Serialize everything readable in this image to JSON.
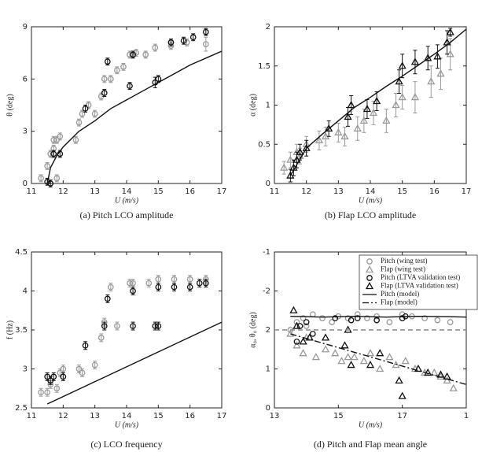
{
  "chart_data": [
    {
      "type": "scatter",
      "title": "(a) Pitch LCO amplitude",
      "xlabel": "U (m/s)",
      "ylabel": "θ (deg)",
      "xlim": [
        11,
        17
      ],
      "xticks": [
        11,
        12,
        13,
        14,
        15,
        16,
        17
      ],
      "ylim": [
        0,
        9
      ],
      "yticks": [
        0,
        3,
        6,
        9
      ],
      "series": [
        {
          "type": "scatter",
          "marker": "circle",
          "color": "#9a9a9a",
          "x": [
            11.3,
            11.5,
            11.6,
            11.7,
            11.7,
            11.8,
            11.8,
            11.9,
            12.4,
            12.5,
            12.6,
            12.8,
            13.0,
            13.2,
            13.3,
            13.5,
            13.7,
            13.9,
            14.1,
            14.3,
            14.6,
            14.9,
            15.4,
            15.9,
            16.5
          ],
          "values": [
            0.3,
            1.0,
            1.7,
            2.0,
            2.5,
            2.5,
            0.3,
            2.7,
            2.5,
            3.5,
            4.0,
            4.5,
            4.0,
            5.0,
            6.0,
            6.0,
            6.5,
            6.7,
            7.4,
            7.5,
            7.4,
            7.8,
            7.9,
            8.1,
            8.0
          ],
          "errors": [
            0.2,
            0.2,
            0.2,
            0.2,
            0.2,
            0.2,
            0.2,
            0.2,
            0.2,
            0.2,
            0.2,
            0.2,
            0.2,
            0.2,
            0.2,
            0.2,
            0.2,
            0.2,
            0.2,
            0.2,
            0.2,
            0.2,
            0.2,
            0.2,
            0.4
          ]
        },
        {
          "type": "scatter",
          "marker": "circle",
          "color": "#111111",
          "x": [
            11.5,
            11.6,
            11.7,
            11.9,
            12.7,
            13.3,
            13.4,
            14.1,
            14.2,
            14.9,
            15.0,
            15.4,
            15.8,
            16.1,
            16.5
          ],
          "values": [
            0.1,
            0.0,
            1.7,
            1.7,
            4.3,
            5.2,
            7.0,
            5.6,
            7.4,
            5.8,
            6.0,
            8.1,
            8.2,
            8.4,
            8.7
          ],
          "errors": [
            0.2,
            0.2,
            0.2,
            0.2,
            0.2,
            0.2,
            0.2,
            0.2,
            0.2,
            0.3,
            0.2,
            0.2,
            0.2,
            0.2,
            0.2
          ]
        },
        {
          "type": "line",
          "color": "#111111",
          "linestyle": "solid",
          "x": [
            11.5,
            11.6,
            11.8,
            12,
            12.5,
            13,
            13.5,
            14,
            14.5,
            15,
            15.5,
            16,
            16.5,
            17
          ],
          "values": [
            0,
            0.9,
            1.6,
            2.1,
            3.0,
            3.6,
            4.3,
            4.8,
            5.3,
            5.8,
            6.3,
            6.8,
            7.2,
            7.6
          ]
        }
      ]
    },
    {
      "type": "scatter",
      "title": "(b) Flap LCO amplitude",
      "xlabel": "U (m/s)",
      "ylabel": "α (deg)",
      "xlim": [
        11,
        17
      ],
      "xticks": [
        11,
        12,
        13,
        14,
        15,
        16,
        17
      ],
      "ylim": [
        0,
        2
      ],
      "yticks": [
        0,
        0.5,
        1,
        1.5,
        2
      ],
      "series": [
        {
          "type": "scatter",
          "marker": "triangle",
          "color": "#9a9a9a",
          "x": [
            11.3,
            11.5,
            11.7,
            11.8,
            12.0,
            12.4,
            12.6,
            13.0,
            13.2,
            13.6,
            13.8,
            14.1,
            14.5,
            14.8,
            15.0,
            15.4,
            15.9,
            16.2,
            16.5
          ],
          "values": [
            0.2,
            0.3,
            0.4,
            0.35,
            0.5,
            0.55,
            0.6,
            0.65,
            0.6,
            0.7,
            0.8,
            0.9,
            0.8,
            1.0,
            1.1,
            1.1,
            1.3,
            1.4,
            1.65
          ],
          "errors": [
            0.08,
            0.1,
            0.1,
            0.1,
            0.1,
            0.12,
            0.12,
            0.12,
            0.12,
            0.15,
            0.15,
            0.15,
            0.15,
            0.15,
            0.15,
            0.2,
            0.2,
            0.2,
            0.2
          ]
        },
        {
          "type": "scatter",
          "marker": "triangle",
          "color": "#111111",
          "x": [
            11.5,
            11.6,
            11.7,
            11.8,
            12.0,
            12.7,
            13.3,
            13.4,
            13.9,
            14.2,
            14.9,
            15.0,
            15.4,
            15.8,
            16.1,
            16.4,
            16.5
          ],
          "values": [
            0.1,
            0.2,
            0.3,
            0.4,
            0.45,
            0.7,
            0.85,
            1.0,
            0.95,
            1.05,
            1.3,
            1.5,
            1.55,
            1.6,
            1.62,
            1.8,
            1.93
          ],
          "errors": [
            0.08,
            0.1,
            0.1,
            0.1,
            0.1,
            0.1,
            0.12,
            0.12,
            0.12,
            0.12,
            0.15,
            0.15,
            0.15,
            0.15,
            0.15,
            0.15,
            0.05
          ]
        },
        {
          "type": "line",
          "color": "#111111",
          "linestyle": "solid",
          "x": [
            11.5,
            12,
            12.5,
            13,
            13.5,
            14,
            14.5,
            15,
            15.5,
            16,
            16.5,
            17
          ],
          "values": [
            0.1,
            0.45,
            0.63,
            0.8,
            0.97,
            1.1,
            1.24,
            1.37,
            1.51,
            1.65,
            1.8,
            1.97
          ]
        }
      ]
    },
    {
      "type": "scatter",
      "title": "(c) LCO frequency",
      "xlabel": "U (m/s)",
      "ylabel": "f (Hz)",
      "xlim": [
        11,
        17
      ],
      "xticks": [
        11,
        12,
        13,
        14,
        15,
        16,
        17
      ],
      "ylim": [
        2.5,
        4.5
      ],
      "yticks": [
        2.5,
        3,
        3.5,
        4,
        4.5
      ],
      "series": [
        {
          "type": "scatter",
          "marker": "circle",
          "color": "#9a9a9a",
          "x": [
            11.3,
            11.5,
            11.6,
            11.8,
            11.9,
            12.0,
            12.5,
            12.6,
            13.0,
            13.2,
            13.3,
            13.5,
            13.7,
            14.1,
            14.2,
            14.7,
            15.0,
            15.5,
            16.0,
            16.5
          ],
          "values": [
            2.7,
            2.7,
            2.8,
            2.75,
            2.95,
            3.0,
            3.0,
            2.95,
            3.05,
            3.4,
            3.6,
            4.05,
            3.55,
            4.1,
            4.1,
            4.1,
            4.15,
            4.15,
            4.15,
            4.15
          ],
          "errors": [
            0.05,
            0.05,
            0.05,
            0.05,
            0.05,
            0.05,
            0.05,
            0.05,
            0.05,
            0.05,
            0.05,
            0.05,
            0.05,
            0.05,
            0.05,
            0.05,
            0.05,
            0.05,
            0.05,
            0.05
          ]
        },
        {
          "type": "scatter",
          "marker": "circle",
          "color": "#111111",
          "x": [
            11.5,
            11.6,
            11.7,
            12.0,
            12.7,
            13.3,
            13.4,
            14.2,
            14.2,
            14.9,
            15.0,
            15.0,
            15.5,
            16.0,
            16.3,
            16.5
          ],
          "values": [
            2.9,
            2.85,
            2.9,
            2.9,
            3.3,
            3.55,
            3.9,
            4.0,
            3.55,
            3.55,
            4.05,
            3.55,
            4.05,
            4.05,
            4.1,
            4.1
          ],
          "errors": [
            0.05,
            0.05,
            0.05,
            0.05,
            0.05,
            0.05,
            0.05,
            0.05,
            0.05,
            0.05,
            0.05,
            0.05,
            0.05,
            0.05,
            0.05,
            0.05
          ]
        },
        {
          "type": "line",
          "color": "#111111",
          "linestyle": "solid",
          "x": [
            11.5,
            17
          ],
          "values": [
            2.55,
            3.6
          ]
        }
      ]
    },
    {
      "type": "scatter",
      "title": "(d) Pitch and Flap mean angle",
      "xlabel": "U (m/s)",
      "ylabel": "α₀, θ₀ (deg)",
      "xlim": [
        13,
        19
      ],
      "xticks": [
        13,
        15,
        17,
        {
          "value": 19,
          "label": "1"
        }
      ],
      "ylim": [
        0,
        4
      ],
      "yticks": [
        0,
        1,
        2,
        {
          "value": 3,
          "label": "-2"
        },
        {
          "value": 4,
          "label": "-1"
        }
      ],
      "legend": "upper right",
      "series": [
        {
          "name": "Pitch (wing test)",
          "type": "scatter",
          "marker": "circle",
          "color": "#9a9a9a",
          "x": [
            13.5,
            13.7,
            13.9,
            14.0,
            14.2,
            14.5,
            14.8,
            15.0,
            15.3,
            15.6,
            15.9,
            16.2,
            16.6,
            17.0,
            17.3,
            17.7,
            18.1,
            18.5
          ],
          "values": [
            2.0,
            2.2,
            2.3,
            2.1,
            2.4,
            2.3,
            2.2,
            2.35,
            2.3,
            2.4,
            2.3,
            2.35,
            2.2,
            2.4,
            2.35,
            2.3,
            2.25,
            2.2
          ]
        },
        {
          "name": "Flap (wing test)",
          "type": "scatter",
          "marker": "triangle",
          "color": "#9a9a9a",
          "x": [
            13.5,
            13.7,
            13.9,
            14.0,
            14.3,
            14.6,
            14.9,
            15.1,
            15.3,
            15.5,
            15.8,
            16.0,
            16.3,
            16.6,
            16.8,
            17.1,
            17.4,
            17.7,
            18.0,
            18.2,
            18.4,
            18.6
          ],
          "values": [
            1.9,
            1.6,
            1.4,
            1.8,
            1.3,
            1.5,
            1.4,
            1.2,
            1.3,
            1.3,
            1.2,
            1.4,
            1.0,
            1.3,
            1.1,
            1.2,
            1.0,
            0.9,
            0.9,
            0.8,
            0.7,
            0.5
          ]
        },
        {
          "name": "Pitch (LTVA validation test)",
          "type": "scatter",
          "marker": "circle",
          "color": "#111111",
          "x": [
            13.7,
            13.8,
            14.0,
            14.2,
            14.9,
            15.4,
            15.6,
            16.2,
            17.0,
            17.1
          ],
          "values": [
            1.7,
            2.1,
            2.2,
            1.9,
            2.3,
            2.25,
            2.3,
            2.25,
            2.3,
            2.35
          ]
        },
        {
          "name": "Flap (LTVA validation test)",
          "type": "scatter",
          "marker": "triangle",
          "color": "#111111",
          "x": [
            13.6,
            13.7,
            13.9,
            14.1,
            14.6,
            15.2,
            15.3,
            15.4,
            16.0,
            16.3,
            16.9,
            17.0,
            17.5,
            17.8,
            18.2,
            18.4
          ],
          "values": [
            2.5,
            2.1,
            1.7,
            1.8,
            1.8,
            1.6,
            2.0,
            1.1,
            1.1,
            1.4,
            0.7,
            0.3,
            1.0,
            0.9,
            0.85,
            0.8
          ]
        },
        {
          "name": "Pitch (model)",
          "type": "line",
          "color": "#111111",
          "linestyle": "solid",
          "x": [
            13.5,
            14.5,
            15.5,
            16.5,
            17.5,
            18.5,
            19
          ],
          "values": [
            2.35,
            2.33,
            2.35,
            2.33,
            2.35,
            2.34,
            2.33
          ]
        },
        {
          "name": "Flap (model)",
          "type": "line",
          "color": "#111111",
          "linestyle": "dashdot",
          "x": [
            13.5,
            19
          ],
          "values": [
            1.9,
            0.6
          ]
        },
        {
          "type": "line",
          "color": "#888888",
          "linestyle": "dashed",
          "x": [
            13,
            19
          ],
          "values": [
            2,
            2
          ]
        }
      ]
    }
  ]
}
